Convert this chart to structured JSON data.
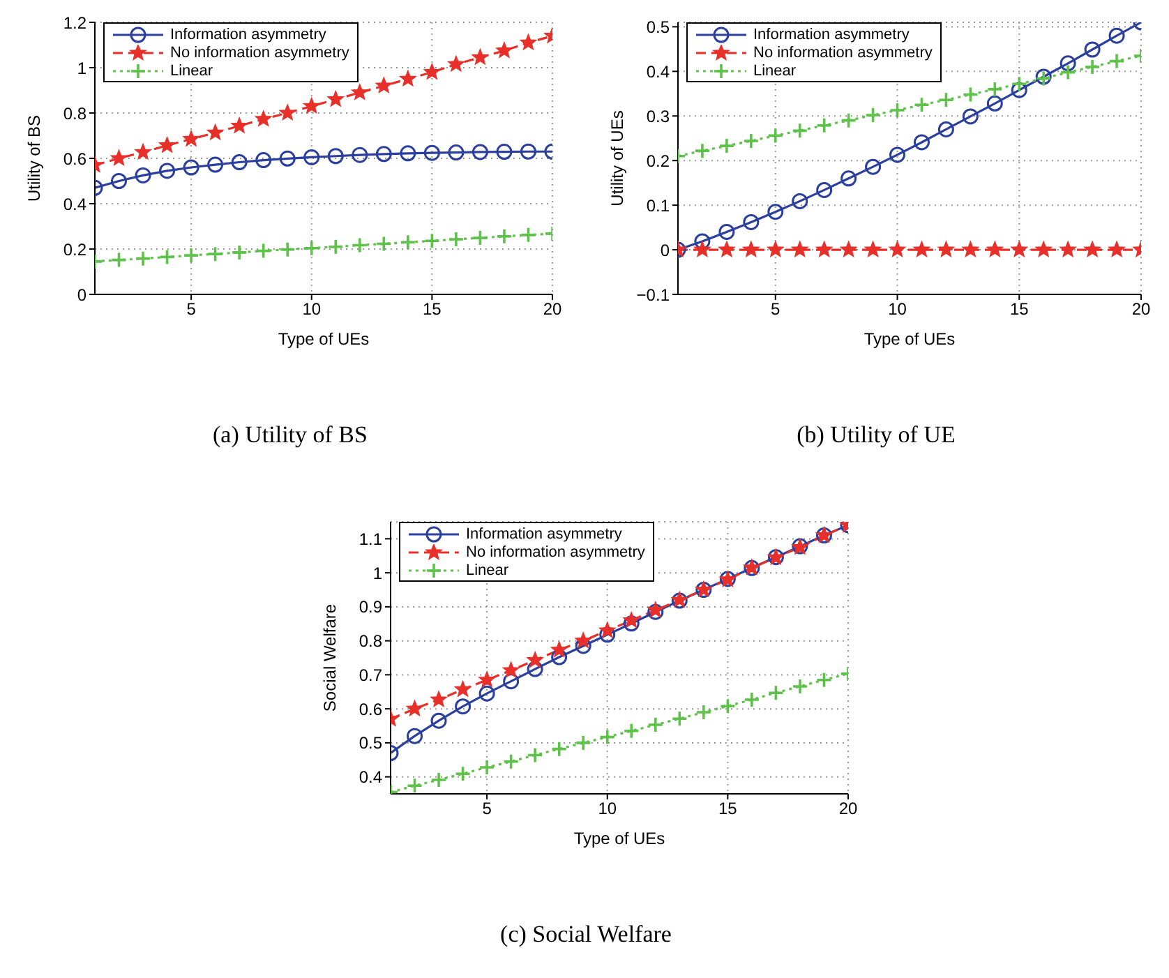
{
  "chart_data": [
    {
      "type": "line",
      "title": "(a) Utility of BS",
      "xlabel": "Type of UEs",
      "ylabel": "Utility of BS",
      "x": [
        1,
        2,
        3,
        4,
        5,
        6,
        7,
        8,
        9,
        10,
        11,
        12,
        13,
        14,
        15,
        16,
        17,
        18,
        19,
        20
      ],
      "xlim": [
        1,
        20
      ],
      "xticks": [
        5,
        10,
        15,
        20
      ],
      "ylim": [
        0,
        1.2
      ],
      "yticks": [
        0,
        0.2,
        0.4,
        0.6,
        0.8,
        1,
        1.2
      ],
      "grid": true,
      "legend": "top left",
      "series": [
        {
          "name": "Information asymmetry",
          "color": "#2b3f9e",
          "marker": "circle",
          "line_style": "solid",
          "values": [
            0.47,
            0.5,
            0.525,
            0.545,
            0.56,
            0.572,
            0.583,
            0.592,
            0.599,
            0.605,
            0.61,
            0.615,
            0.619,
            0.622,
            0.624,
            0.626,
            0.628,
            0.629,
            0.63,
            0.63
          ]
        },
        {
          "name": "No information asymmetry",
          "color": "#e8302a",
          "marker": "star",
          "line_style": "dashed",
          "values": [
            0.57,
            0.6,
            0.627,
            0.657,
            0.685,
            0.713,
            0.743,
            0.773,
            0.8,
            0.83,
            0.86,
            0.89,
            0.92,
            0.95,
            0.98,
            1.015,
            1.045,
            1.075,
            1.11,
            1.14
          ]
        },
        {
          "name": "Linear",
          "color": "#5ec24a",
          "marker": "cross",
          "line_style": "dotted",
          "values": [
            0.145,
            0.152,
            0.158,
            0.165,
            0.172,
            0.178,
            0.185,
            0.192,
            0.198,
            0.204,
            0.21,
            0.217,
            0.223,
            0.23,
            0.236,
            0.243,
            0.249,
            0.256,
            0.262,
            0.268
          ]
        }
      ]
    },
    {
      "type": "line",
      "title": "(b) Utility of UE",
      "xlabel": "Type of UEs",
      "ylabel": "Utility of UEs",
      "x": [
        1,
        2,
        3,
        4,
        5,
        6,
        7,
        8,
        9,
        10,
        11,
        12,
        13,
        14,
        15,
        16,
        17,
        18,
        19,
        20
      ],
      "xlim": [
        1,
        20
      ],
      "xticks": [
        5,
        10,
        15,
        20
      ],
      "ylim": [
        -0.1,
        0.51
      ],
      "yticks": [
        -0.1,
        0,
        0.1,
        0.2,
        0.3,
        0.4,
        0.5
      ],
      "grid": true,
      "legend": "top left",
      "series": [
        {
          "name": "Information asymmetry",
          "color": "#2b3f9e",
          "marker": "circle",
          "line_style": "solid",
          "values": [
            0,
            0.019,
            0.04,
            0.062,
            0.085,
            0.109,
            0.134,
            0.16,
            0.186,
            0.213,
            0.241,
            0.27,
            0.299,
            0.328,
            0.358,
            0.388,
            0.418,
            0.449,
            0.48,
            0.51
          ]
        },
        {
          "name": "No information asymmetry",
          "color": "#e8302a",
          "marker": "star",
          "line_style": "dashed",
          "values": [
            0,
            0,
            0,
            0,
            0,
            0,
            0,
            0,
            0,
            0,
            0,
            0,
            0,
            0,
            0,
            0,
            0,
            0,
            0,
            0
          ]
        },
        {
          "name": "Linear",
          "color": "#5ec24a",
          "marker": "cross",
          "line_style": "dotted",
          "values": [
            0.21,
            0.222,
            0.233,
            0.244,
            0.256,
            0.267,
            0.279,
            0.29,
            0.302,
            0.313,
            0.325,
            0.336,
            0.348,
            0.36,
            0.372,
            0.384,
            0.398,
            0.41,
            0.423,
            0.435
          ]
        }
      ]
    },
    {
      "type": "line",
      "title": "(c) Social Welfare",
      "xlabel": "Type of UEs",
      "ylabel": "Social Welfare",
      "x": [
        1,
        2,
        3,
        4,
        5,
        6,
        7,
        8,
        9,
        10,
        11,
        12,
        13,
        14,
        15,
        16,
        17,
        18,
        19,
        20
      ],
      "xlim": [
        1,
        20
      ],
      "xticks": [
        5,
        10,
        15,
        20
      ],
      "ylim": [
        0.35,
        1.15
      ],
      "yticks": [
        0.4,
        0.5,
        0.6,
        0.7,
        0.8,
        0.9,
        1,
        1.1
      ],
      "grid": true,
      "legend": "top left",
      "series": [
        {
          "name": "Information asymmetry",
          "color": "#2b3f9e",
          "marker": "circle",
          "line_style": "solid",
          "values": [
            0.47,
            0.52,
            0.565,
            0.607,
            0.645,
            0.681,
            0.717,
            0.752,
            0.785,
            0.818,
            0.851,
            0.885,
            0.918,
            0.95,
            0.982,
            1.014,
            1.046,
            1.078,
            1.11,
            1.14
          ]
        },
        {
          "name": "No information asymmetry",
          "color": "#e8302a",
          "marker": "star",
          "line_style": "dashed",
          "values": [
            0.57,
            0.6,
            0.627,
            0.657,
            0.685,
            0.713,
            0.743,
            0.773,
            0.8,
            0.83,
            0.86,
            0.89,
            0.92,
            0.95,
            0.98,
            1.015,
            1.045,
            1.075,
            1.11,
            1.14
          ]
        },
        {
          "name": "Linear",
          "color": "#5ec24a",
          "marker": "cross",
          "line_style": "dotted",
          "values": [
            0.355,
            0.374,
            0.391,
            0.409,
            0.428,
            0.445,
            0.464,
            0.482,
            0.5,
            0.517,
            0.535,
            0.553,
            0.571,
            0.59,
            0.608,
            0.627,
            0.647,
            0.666,
            0.685,
            0.703
          ]
        }
      ]
    }
  ]
}
